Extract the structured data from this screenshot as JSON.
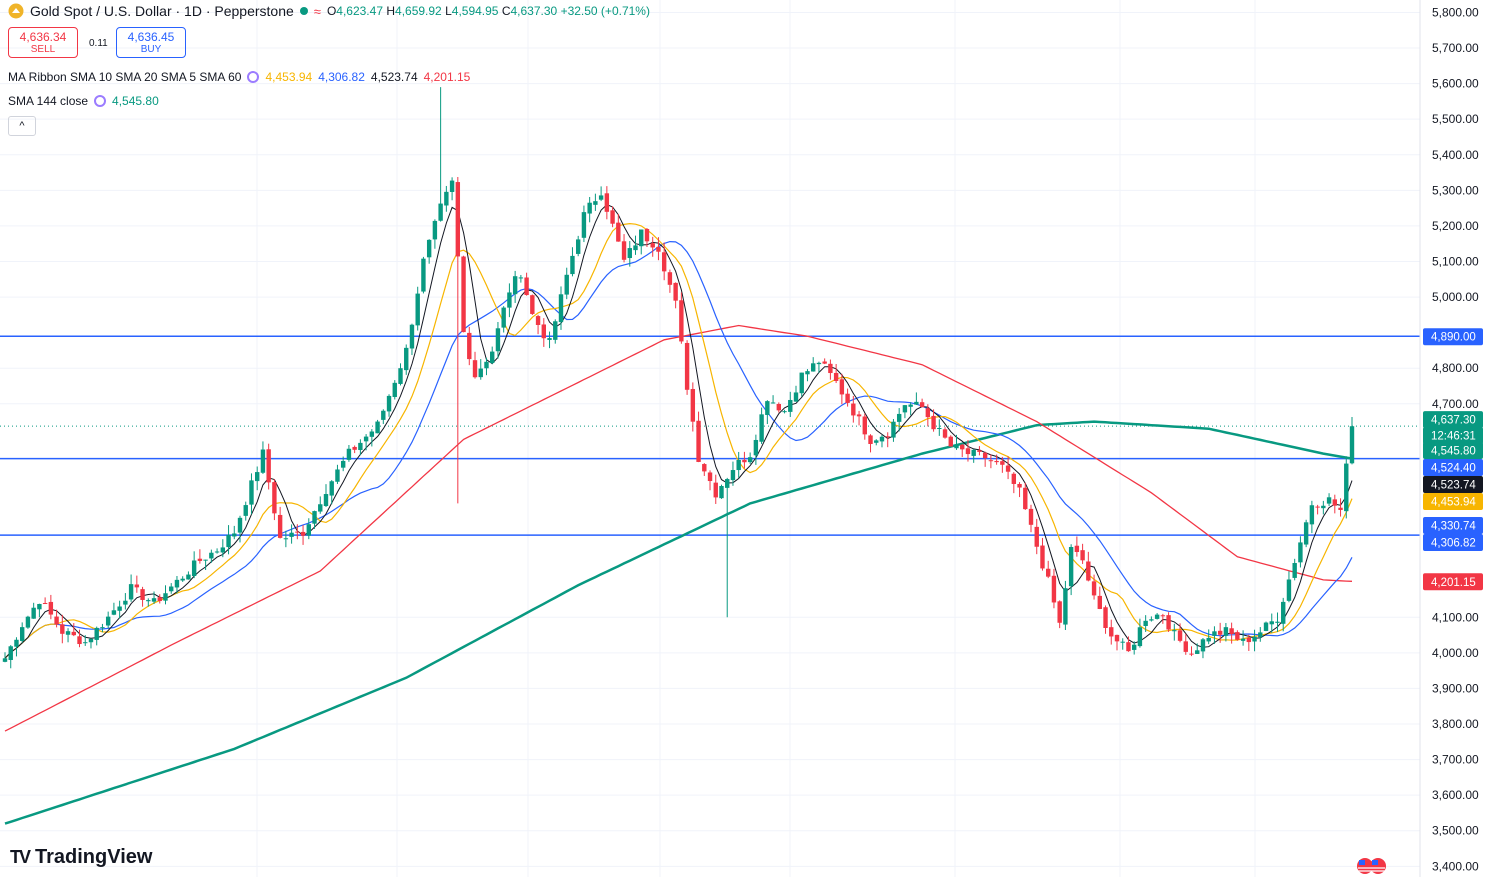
{
  "header": {
    "symbol": "Gold Spot / U.S. Dollar · 1D · Pepperstone",
    "open_label": "O",
    "open": "4,623.47",
    "high_label": "H",
    "high": "4,659.92",
    "low_label": "L",
    "low": "4,594.95",
    "close_label": "C",
    "close": "4,637.30",
    "change": "+32.50 (+0.71%)"
  },
  "trade": {
    "sell_price": "4,636.34",
    "sell_label": "SELL",
    "spread": "0.11",
    "buy_price": "4,636.45",
    "buy_label": "BUY"
  },
  "indicators": {
    "ribbon_label": "MA Ribbon SMA 10 SMA 20 SMA 5 SMA 60",
    "ribbon_values": [
      "4,453.94",
      "4,306.82",
      "4,523.74",
      "4,201.15"
    ],
    "sma_label": "SMA 144 close",
    "sma_value": "4,545.80"
  },
  "collapse_icon": "chevron-up-icon",
  "logo": "TradingView",
  "colors": {
    "up": "#089981",
    "down": "#f23645",
    "sma10": "#f7b500",
    "sma20": "#2962ff",
    "sma5": "#131722",
    "sma60": "#f23645",
    "sma144": "#089981",
    "hline": "#2962ff"
  },
  "chart_data": {
    "type": "candlestick",
    "y_ticks": [
      "5,800.00",
      "5,700.00",
      "5,600.00",
      "5,500.00",
      "5,400.00",
      "5,300.00",
      "5,200.00",
      "5,100.00",
      "5,000.00",
      "4,800.00",
      "4,700.00",
      "4,100.00",
      "4,000.00",
      "3,900.00",
      "3,800.00",
      "3,700.00",
      "3,600.00",
      "3,500.00",
      "3,400.00"
    ],
    "ylim": [
      3370,
      5835
    ],
    "horizontal_lines": [
      4890,
      4545.8,
      4330.74
    ],
    "price_labels": [
      {
        "text": "4,890.00",
        "value": 4890,
        "color": "#2962ff"
      },
      {
        "text": "4,637.30",
        "value": 4637.3,
        "color": "#089981"
      },
      {
        "text": "12:46:31",
        "value": 4637.3,
        "color": "#089981"
      },
      {
        "text": "4,545.80",
        "value": 4545.8,
        "color": "#089981"
      },
      {
        "text": "4,524.40",
        "value": 4524.4,
        "color": "#2962ff"
      },
      {
        "text": "4,523.74",
        "value": 4523.74,
        "color": "#131722"
      },
      {
        "text": "4,453.94",
        "value": 4453.94,
        "color": "#f7b500"
      },
      {
        "text": "4,330.74",
        "value": 4330.74,
        "color": "#2962ff"
      },
      {
        "text": "4,306.82",
        "value": 4306.82,
        "color": "#2962ff"
      },
      {
        "text": "4,201.15",
        "value": 4201.15,
        "color": "#f23645"
      }
    ],
    "close_anchors": [
      [
        0,
        3985
      ],
      [
        3,
        4080
      ],
      [
        6,
        4150
      ],
      [
        10,
        4060
      ],
      [
        14,
        4030
      ],
      [
        18,
        4100
      ],
      [
        22,
        4180
      ],
      [
        26,
        4140
      ],
      [
        30,
        4200
      ],
      [
        34,
        4260
      ],
      [
        37,
        4290
      ],
      [
        40,
        4340
      ],
      [
        45,
        4560
      ],
      [
        48,
        4320
      ],
      [
        52,
        4340
      ],
      [
        56,
        4460
      ],
      [
        60,
        4560
      ],
      [
        65,
        4640
      ],
      [
        70,
        4850
      ],
      [
        73,
        5100
      ],
      [
        76,
        5250
      ],
      [
        78,
        5320
      ],
      [
        80,
        4900
      ],
      [
        82,
        4780
      ],
      [
        85,
        4850
      ],
      [
        88,
        5020
      ],
      [
        90,
        5070
      ],
      [
        92,
        4950
      ],
      [
        95,
        4870
      ],
      [
        98,
        5060
      ],
      [
        101,
        5230
      ],
      [
        104,
        5300
      ],
      [
        106,
        5200
      ],
      [
        108,
        5100
      ],
      [
        111,
        5180
      ],
      [
        114,
        5140
      ],
      [
        117,
        4980
      ],
      [
        119,
        4750
      ],
      [
        121,
        4550
      ],
      [
        124,
        4450
      ],
      [
        127,
        4520
      ],
      [
        130,
        4560
      ],
      [
        133,
        4720
      ],
      [
        136,
        4680
      ],
      [
        139,
        4780
      ],
      [
        142,
        4820
      ],
      [
        145,
        4760
      ],
      [
        148,
        4680
      ],
      [
        151,
        4600
      ],
      [
        154,
        4620
      ],
      [
        157,
        4700
      ],
      [
        160,
        4690
      ],
      [
        162,
        4640
      ],
      [
        165,
        4580
      ],
      [
        168,
        4560
      ],
      [
        171,
        4550
      ],
      [
        174,
        4520
      ],
      [
        177,
        4450
      ],
      [
        180,
        4300
      ],
      [
        182,
        4200
      ],
      [
        184,
        4080
      ],
      [
        186,
        4290
      ],
      [
        188,
        4260
      ],
      [
        190,
        4150
      ],
      [
        193,
        4050
      ],
      [
        196,
        4000
      ],
      [
        199,
        4100
      ],
      [
        202,
        4110
      ],
      [
        204,
        4050
      ],
      [
        207,
        4000
      ],
      [
        210,
        4050
      ],
      [
        213,
        4060
      ],
      [
        216,
        4030
      ],
      [
        219,
        4060
      ],
      [
        222,
        4100
      ],
      [
        225,
        4260
      ],
      [
        228,
        4420
      ],
      [
        231,
        4430
      ],
      [
        233,
        4400
      ],
      [
        234,
        4520
      ],
      [
        235,
        4637
      ]
    ],
    "sma144_anchors": [
      [
        0,
        3520
      ],
      [
        40,
        3730
      ],
      [
        70,
        3930
      ],
      [
        100,
        4190
      ],
      [
        130,
        4420
      ],
      [
        160,
        4560
      ],
      [
        180,
        4640
      ],
      [
        190,
        4650
      ],
      [
        210,
        4630
      ],
      [
        230,
        4560
      ],
      [
        235,
        4546
      ]
    ],
    "sma60_anchors": [
      [
        0,
        3780
      ],
      [
        30,
        4030
      ],
      [
        55,
        4230
      ],
      [
        80,
        4600
      ],
      [
        100,
        4760
      ],
      [
        115,
        4880
      ],
      [
        128,
        4920
      ],
      [
        140,
        4890
      ],
      [
        160,
        4810
      ],
      [
        180,
        4650
      ],
      [
        200,
        4450
      ],
      [
        215,
        4270
      ],
      [
        230,
        4205
      ],
      [
        235,
        4201
      ]
    ]
  }
}
